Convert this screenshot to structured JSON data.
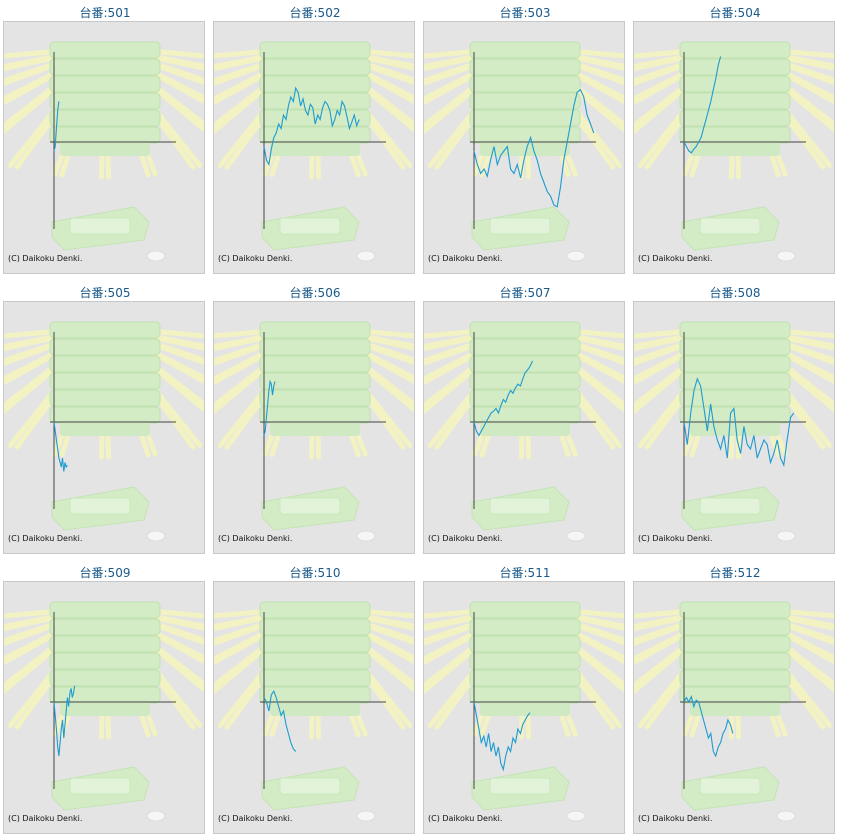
{
  "page": {
    "copyright": "(C) Daikoku Denki."
  },
  "chart_data": [
    {
      "type": "line",
      "title": "台番:501",
      "xlim": [
        0,
        100
      ],
      "ylim": [
        -100,
        100
      ],
      "x": [
        0,
        1,
        2,
        3,
        4
      ],
      "y": [
        -10,
        -5,
        15,
        35,
        45
      ]
    },
    {
      "type": "line",
      "title": "台番:502",
      "xlim": [
        0,
        100
      ],
      "ylim": [
        -100,
        100
      ],
      "x": [
        0,
        2,
        4,
        6,
        8,
        10,
        12,
        14,
        16,
        18,
        20,
        22,
        24,
        26,
        28,
        30,
        32,
        34,
        36,
        38,
        40,
        42,
        44,
        46,
        48,
        50,
        52,
        54,
        56,
        58,
        60,
        62,
        64,
        66,
        68,
        70,
        72,
        74,
        76,
        78
      ],
      "y": [
        -5,
        -20,
        -25,
        -8,
        5,
        10,
        20,
        15,
        30,
        25,
        40,
        50,
        45,
        60,
        55,
        40,
        48,
        35,
        30,
        42,
        38,
        20,
        30,
        25,
        38,
        45,
        42,
        35,
        18,
        25,
        35,
        30,
        45,
        40,
        28,
        15,
        22,
        30,
        18,
        25
      ]
    },
    {
      "type": "line",
      "title": "台番:503",
      "xlim": [
        0,
        110
      ],
      "ylim": [
        -100,
        100
      ],
      "x": [
        0,
        3,
        6,
        9,
        12,
        15,
        18,
        21,
        24,
        27,
        30,
        33,
        36,
        39,
        42,
        45,
        48,
        51,
        54,
        57,
        60,
        63,
        66,
        69,
        72,
        75,
        78,
        81,
        84,
        87,
        90,
        93,
        96,
        99,
        102,
        105,
        108
      ],
      "y": [
        -10,
        -25,
        -35,
        -30,
        -38,
        -20,
        -5,
        -25,
        -15,
        -10,
        -5,
        -30,
        -35,
        -25,
        -40,
        -20,
        -5,
        5,
        -10,
        -20,
        -35,
        -45,
        -55,
        -60,
        -70,
        -72,
        -50,
        -20,
        0,
        20,
        40,
        55,
        58,
        50,
        30,
        20,
        10
      ]
    },
    {
      "type": "line",
      "title": "台番:504",
      "xlim": [
        0,
        100
      ],
      "ylim": [
        -100,
        100
      ],
      "x": [
        0,
        2,
        4,
        6,
        8,
        10,
        12,
        14,
        16,
        18,
        20,
        22,
        24,
        26,
        28,
        30
      ],
      "y": [
        0,
        -5,
        -10,
        -12,
        -8,
        -5,
        0,
        5,
        15,
        25,
        35,
        45,
        58,
        70,
        85,
        95
      ]
    },
    {
      "type": "line",
      "title": "台番:505",
      "xlim": [
        0,
        100
      ],
      "ylim": [
        -100,
        100
      ],
      "x": [
        0,
        1,
        2,
        3,
        4,
        5,
        6,
        7,
        8,
        9,
        10,
        11
      ],
      "y": [
        0,
        -10,
        -20,
        -30,
        -40,
        -45,
        -50,
        -40,
        -55,
        -45,
        -50,
        -48
      ]
    },
    {
      "type": "line",
      "title": "台番:506",
      "xlim": [
        0,
        100
      ],
      "ylim": [
        -100,
        100
      ],
      "x": [
        0,
        1,
        2,
        3,
        4,
        5,
        6,
        7,
        8,
        9
      ],
      "y": [
        -15,
        -10,
        5,
        20,
        35,
        45,
        42,
        30,
        40,
        45
      ]
    },
    {
      "type": "line",
      "title": "台番:507",
      "xlim": [
        0,
        100
      ],
      "ylim": [
        -100,
        100
      ],
      "x": [
        0,
        2,
        4,
        6,
        8,
        10,
        12,
        14,
        16,
        18,
        20,
        22,
        24,
        26,
        28,
        30,
        32,
        34,
        36,
        38,
        40,
        42,
        44,
        46,
        48
      ],
      "y": [
        0,
        -10,
        -15,
        -10,
        -5,
        0,
        5,
        10,
        12,
        15,
        10,
        18,
        25,
        22,
        30,
        35,
        32,
        38,
        42,
        40,
        48,
        55,
        58,
        62,
        68
      ]
    },
    {
      "type": "line",
      "title": "台番:508",
      "xlim": [
        0,
        110
      ],
      "ylim": [
        -100,
        100
      ],
      "x": [
        0,
        3,
        6,
        9,
        12,
        15,
        18,
        21,
        24,
        27,
        30,
        33,
        36,
        39,
        42,
        45,
        48,
        51,
        54,
        57,
        60,
        63,
        66,
        69,
        72,
        75,
        78,
        81,
        84,
        87,
        90,
        93,
        96,
        99
      ],
      "y": [
        0,
        -25,
        10,
        35,
        48,
        40,
        15,
        -10,
        20,
        -5,
        -20,
        -30,
        -15,
        -40,
        10,
        15,
        -20,
        -35,
        -5,
        -25,
        -30,
        -15,
        -40,
        -30,
        -20,
        -25,
        -45,
        -35,
        -20,
        -40,
        -48,
        -20,
        5,
        10
      ]
    },
    {
      "type": "line",
      "title": "台番:509",
      "xlim": [
        0,
        100
      ],
      "ylim": [
        -100,
        100
      ],
      "x": [
        0,
        1,
        2,
        3,
        4,
        5,
        6,
        7,
        8,
        9,
        10,
        11,
        12,
        13,
        14,
        15,
        16,
        17
      ],
      "y": [
        0,
        -15,
        -30,
        -50,
        -60,
        -45,
        -30,
        -20,
        -40,
        -25,
        -10,
        5,
        -5,
        10,
        15,
        5,
        10,
        18
      ]
    },
    {
      "type": "line",
      "title": "台番:510",
      "xlim": [
        0,
        100
      ],
      "ylim": [
        -100,
        100
      ],
      "x": [
        0,
        2,
        4,
        6,
        8,
        10,
        12,
        14,
        16,
        18,
        20,
        22,
        24,
        26
      ],
      "y": [
        5,
        0,
        -10,
        8,
        12,
        5,
        -5,
        -15,
        -10,
        -25,
        -35,
        -45,
        -52,
        -55
      ]
    },
    {
      "type": "line",
      "title": "台番:511",
      "xlim": [
        0,
        100
      ],
      "ylim": [
        -100,
        100
      ],
      "x": [
        0,
        2,
        4,
        6,
        8,
        10,
        12,
        14,
        16,
        18,
        20,
        22,
        24,
        26,
        28,
        30,
        32,
        34,
        36,
        38,
        40,
        42,
        44,
        46
      ],
      "y": [
        0,
        -15,
        -30,
        -45,
        -38,
        -50,
        -35,
        -55,
        -45,
        -60,
        -50,
        -68,
        -75,
        -60,
        -50,
        -55,
        -40,
        -45,
        -30,
        -35,
        -25,
        -20,
        -15,
        -12
      ]
    },
    {
      "type": "line",
      "title": "台番:512",
      "xlim": [
        0,
        100
      ],
      "ylim": [
        -100,
        100
      ],
      "x": [
        0,
        2,
        4,
        6,
        8,
        10,
        12,
        14,
        16,
        18,
        20,
        22,
        24,
        26,
        28,
        30,
        32,
        34,
        36,
        38,
        40
      ],
      "y": [
        0,
        5,
        0,
        6,
        -5,
        2,
        0,
        -10,
        -20,
        -30,
        -40,
        -35,
        -55,
        -60,
        -50,
        -45,
        -35,
        -30,
        -20,
        -25,
        -35
      ]
    }
  ]
}
